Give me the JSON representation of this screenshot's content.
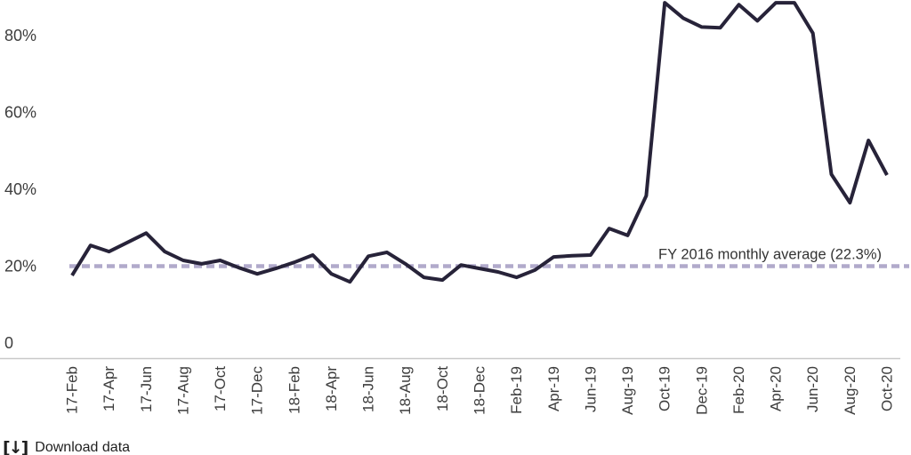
{
  "chart_data": {
    "type": "line",
    "title": "",
    "unit": "%",
    "categories": [
      "17-Feb",
      "17-Mar",
      "17-Apr",
      "17-May",
      "17-Jun",
      "17-Jul",
      "17-Aug",
      "17-Sep",
      "17-Oct",
      "17-Nov",
      "17-Dec",
      "18-Jan",
      "18-Feb",
      "18-Mar",
      "18-Apr",
      "18-May",
      "18-Jun",
      "18-Jul",
      "18-Aug",
      "18-Sep",
      "18-Oct",
      "18-Nov",
      "18-Dec",
      "Jan-19",
      "Feb-19",
      "Mar-19",
      "Apr-19",
      "May-19",
      "Jun-19",
      "Jul-19",
      "Aug-19",
      "Sep-19",
      "Oct-19",
      "Nov-19",
      "Dec-19",
      "Jan-20",
      "Feb-20",
      "Mar-20",
      "Apr-20",
      "May-20",
      "Jun-20",
      "Jul-20",
      "Aug-20",
      "Sep-20",
      "Oct-20"
    ],
    "series": [
      {
        "name": "",
        "values": [
          19.9,
          27.7,
          26.1,
          28.5,
          30.9,
          26.1,
          23.8,
          22.9,
          23.8,
          21.9,
          20.3,
          21.7,
          23.3,
          25.2,
          20.3,
          18.2,
          24.9,
          25.9,
          22.9,
          19.4,
          18.7,
          22.6,
          21.7,
          20.8,
          19.4,
          21.3,
          24.7,
          25.0,
          25.2,
          32.1,
          30.3,
          40.6,
          90.8,
          86.8,
          84.5,
          84.3,
          90.3,
          86.1,
          90.8,
          90.8,
          82.9,
          46.2,
          38.8,
          55.0,
          46.0
        ]
      }
    ],
    "x_tick_labels": [
      "17-Feb",
      "17-Apr",
      "17-Jun",
      "17-Aug",
      "17-Oct",
      "17-Dec",
      "18-Feb",
      "18-Apr",
      "18-Jun",
      "18-Aug",
      "18-Oct",
      "18-Dec",
      "Feb-19",
      "Apr-19",
      "Jun-19",
      "Aug-19",
      "Oct-19",
      "Dec-19",
      "Feb-20",
      "Apr-20",
      "Jun-20",
      "Aug-20",
      "Oct-20"
    ],
    "x_tick_every": 2,
    "y_axis": {
      "ticks": [
        {
          "label": "80%",
          "value": 80
        },
        {
          "label": "60%",
          "value": 60
        },
        {
          "label": "40%",
          "value": 40
        },
        {
          "label": "20%",
          "value": 20
        },
        {
          "label": "0",
          "value": 0
        }
      ],
      "range": [
        0,
        92
      ]
    },
    "reference_line": {
      "label": "FY 2016 monthly average (22.3%)",
      "value": 22.3
    },
    "legend": "none",
    "grid": "off",
    "colors": {
      "series_line": "#272339",
      "reference_line": "#b1aacb",
      "axis_line": "#c9c9c9",
      "tick_text": "#3d3d3d",
      "annotation_text": "#333333"
    }
  },
  "footer": {
    "download_icon": "[↓]",
    "download_label": "Download data"
  }
}
